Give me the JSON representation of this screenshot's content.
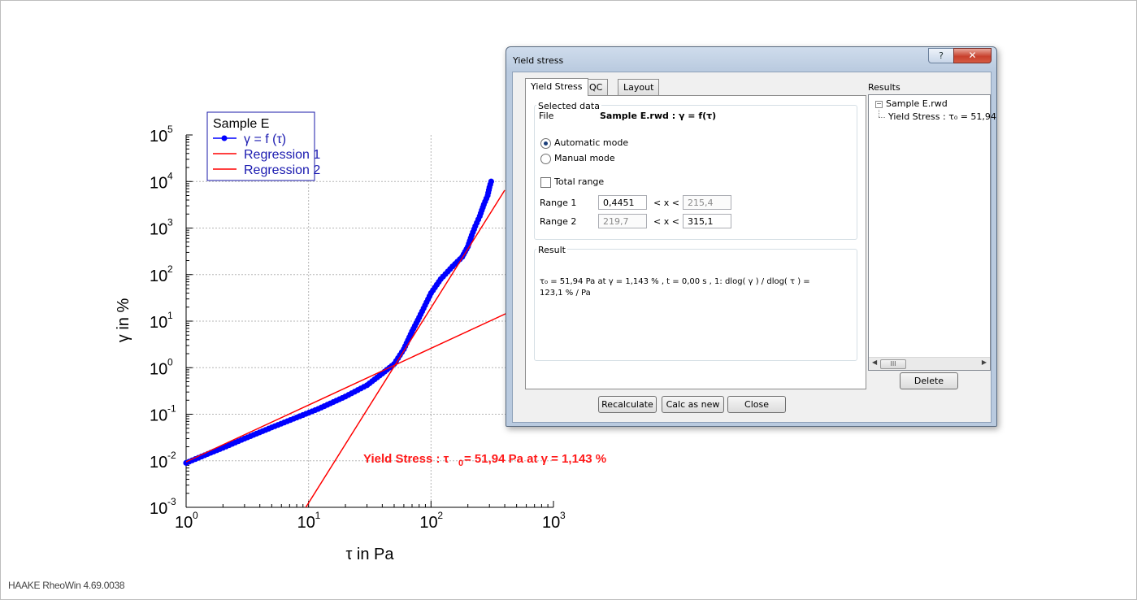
{
  "footer": "HAAKE RheoWin 4.69.0038",
  "chart_data": {
    "type": "scatter",
    "xscale": "log",
    "yscale": "log",
    "xlim": [
      1,
      1000
    ],
    "ylim": [
      0.001,
      100000
    ],
    "xlabel": "τ in Pa",
    "ylabel": "γ in %",
    "x_ticks": [
      "10",
      "10",
      "10",
      "10"
    ],
    "x_tick_exps": [
      "0",
      "1",
      "2",
      "3"
    ],
    "y_ticks": [
      "10",
      "10",
      "10",
      "10",
      "10",
      "10",
      "10",
      "10",
      "10"
    ],
    "y_tick_exps": [
      "-3",
      "-2",
      "-1",
      "0",
      "1",
      "2",
      "3",
      "4",
      "5"
    ],
    "grid": true,
    "legend": {
      "title": "Sample E",
      "placement": "top-left",
      "items": [
        "γ = f (τ)",
        "Regression 1",
        "Regression 2"
      ]
    },
    "series": [
      {
        "name": "γ = f (τ)",
        "color": "#0000ff",
        "marker": "circle",
        "x": [
          1,
          1.5,
          2,
          3,
          5,
          8,
          12,
          20,
          30,
          40,
          50,
          60,
          70,
          80,
          100,
          120,
          150,
          180,
          200,
          215,
          230,
          250,
          270,
          290,
          300,
          310
        ],
        "y": [
          0.009,
          0.014,
          0.019,
          0.03,
          0.052,
          0.085,
          0.13,
          0.24,
          0.42,
          0.75,
          1.2,
          2.5,
          6,
          12,
          40,
          80,
          150,
          240,
          400,
          700,
          1100,
          1800,
          3200,
          5000,
          7500,
          10000
        ]
      },
      {
        "name": "Regression 1",
        "color": "#ff0000",
        "x": [
          1,
          420
        ],
        "y": [
          0.0095,
          15
        ]
      },
      {
        "name": "Regression 2",
        "color": "#ff0000",
        "x": [
          9.5,
          400
        ],
        "y": [
          0.001,
          6500
        ]
      }
    ],
    "annotation": {
      "text": "Yield Stress : τ",
      "sub": "0",
      "rest": " = 51,94 Pa at  γ = 1,143 %",
      "color": "#ff1a1a"
    }
  },
  "dialog": {
    "title": "Yield stress",
    "help_label": "?",
    "close_label": "✕",
    "tabs": [
      "Yield Stress",
      "QC",
      "Layout"
    ],
    "selected_data": {
      "group_title": "Selected data",
      "file_label": "File",
      "file_value": "Sample E.rwd :  γ = f(τ)",
      "automatic_mode": "Automatic mode",
      "manual_mode": "Manual mode",
      "total_range": "Total range",
      "range1_label": "Range 1",
      "range1_min": "0,4451",
      "range1_op": "< x <",
      "range1_max": "215,4",
      "range2_label": "Range 2",
      "range2_min": "219,7",
      "range2_op": "< x <",
      "range2_max": "315,1"
    },
    "result": {
      "group_title": "Result",
      "line1": "τ₀  = 51,94 Pa at  γ = 1,143 % , t = 0,00 s ,  1: dlog( γ ) / dlog( τ ) =",
      "line2": "123,1 % / Pa"
    },
    "buttons": {
      "recalculate": "Recalculate",
      "calc_as_new": "Calc as new",
      "close": "Close",
      "delete": "Delete"
    },
    "results_panel": {
      "label": "Results",
      "tree_root": "Sample E.rwd",
      "tree_child": "Yield Stress : τ₀  = 51,94",
      "scroll_thumb": "III"
    }
  }
}
